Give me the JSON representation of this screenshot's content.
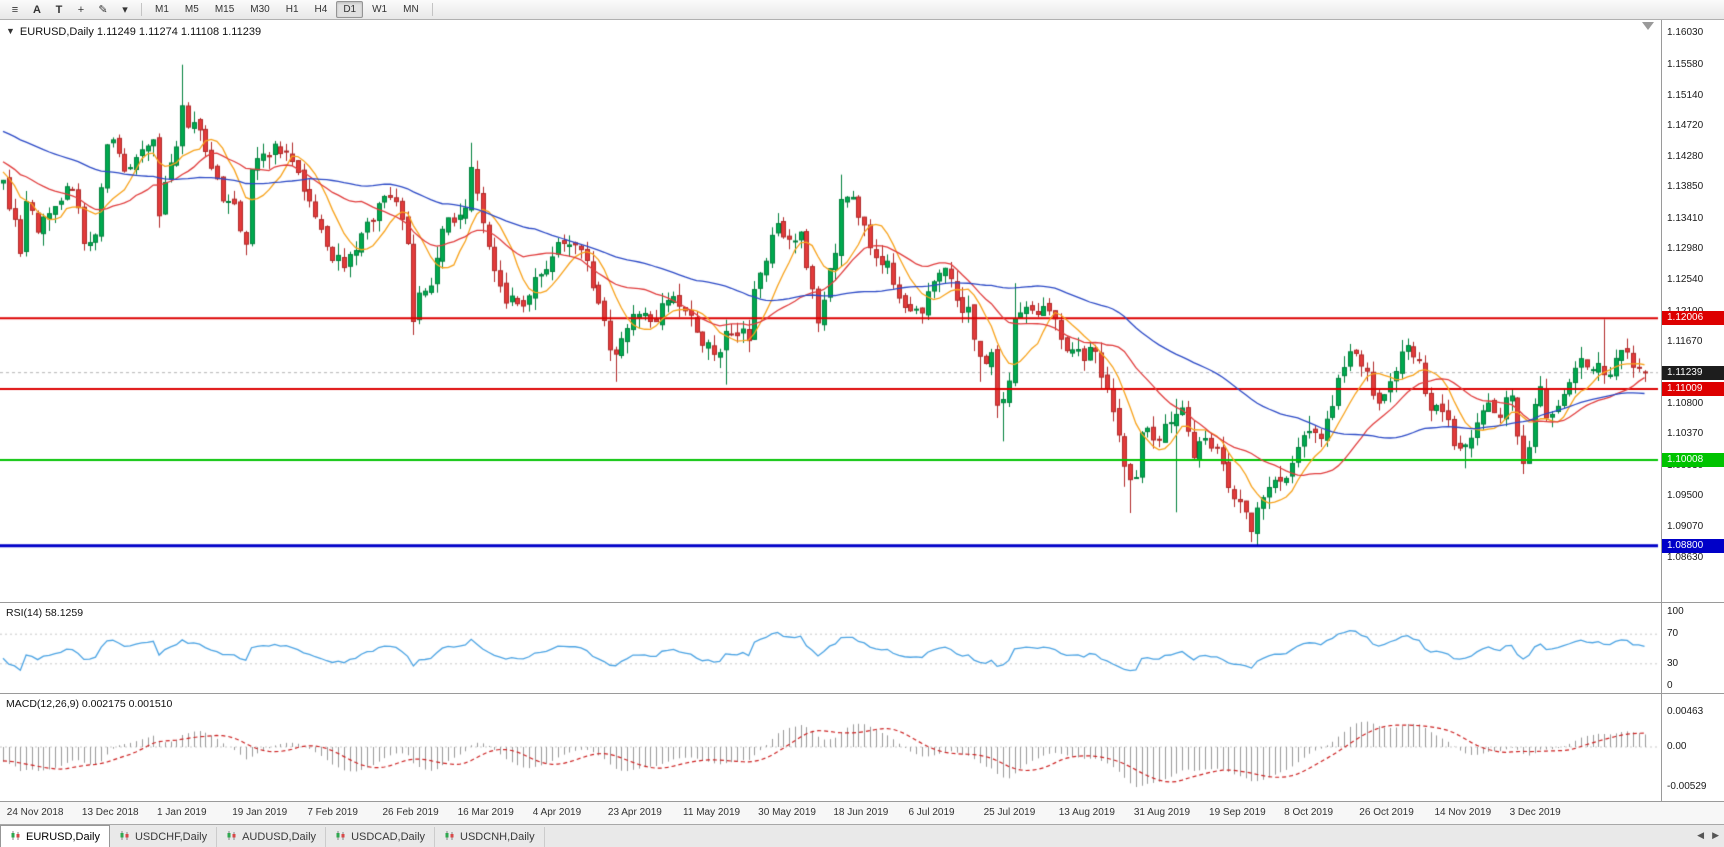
{
  "toolbar": {
    "icons": [
      {
        "name": "menu-icon",
        "glyph": "≡"
      },
      {
        "name": "cursor-icon",
        "glyph": "A"
      },
      {
        "name": "text-tool-icon",
        "glyph": "T"
      },
      {
        "name": "crosshair-icon",
        "glyph": "+"
      },
      {
        "name": "draw-tool-icon",
        "glyph": "✎"
      },
      {
        "name": "chevron-down-icon",
        "glyph": "▾"
      }
    ],
    "timeframes": [
      {
        "label": "M1"
      },
      {
        "label": "M5"
      },
      {
        "label": "M15"
      },
      {
        "label": "M30"
      },
      {
        "label": "H1"
      },
      {
        "label": "H4"
      },
      {
        "label": "D1",
        "active": true
      },
      {
        "label": "W1"
      },
      {
        "label": "MN"
      }
    ]
  },
  "chart": {
    "info_line": "EURUSD,Daily 1.11249 1.11274 1.11108 1.11239",
    "info_marker": "▼",
    "price_ticks": [
      "1.16030",
      "1.15580",
      "1.15140",
      "1.14720",
      "1.14280",
      "1.13850",
      "1.13410",
      "1.12980",
      "1.12540",
      "1.12100",
      "1.11670",
      "1.10800",
      "1.10370",
      "1.09930",
      "1.09500",
      "1.09070",
      "1.08630"
    ],
    "levels": [
      {
        "value": 1.12006,
        "label": "1.12006",
        "color": "#dd0000",
        "line_width": 2
      },
      {
        "value": 1.11009,
        "label": "1.11009",
        "color": "#dd0000",
        "line_width": 2
      },
      {
        "value": 1.10008,
        "label": "1.10008",
        "color": "#00c300",
        "line_width": 2
      },
      {
        "value": 1.088,
        "label": "1.08800",
        "color": "#0000c8",
        "line_width": 3
      }
    ],
    "current_price": {
      "value": 1.11239,
      "label": "1.11239",
      "badge_color": "#1d1d1d"
    },
    "date_labels": [
      {
        "idx": 1,
        "label": "24 Nov 2018"
      },
      {
        "idx": 14,
        "label": "13 Dec 2018"
      },
      {
        "idx": 27,
        "label": "1 Jan 2019"
      },
      {
        "idx": 40,
        "label": "19 Jan 2019"
      },
      {
        "idx": 53,
        "label": "7 Feb 2019"
      },
      {
        "idx": 66,
        "label": "26 Feb 2019"
      },
      {
        "idx": 79,
        "label": "16 Mar 2019"
      },
      {
        "idx": 92,
        "label": "4 Apr 2019"
      },
      {
        "idx": 105,
        "label": "23 Apr 2019"
      },
      {
        "idx": 118,
        "label": "11 May 2019"
      },
      {
        "idx": 131,
        "label": "30 May 2019"
      },
      {
        "idx": 144,
        "label": "18 Jun 2019"
      },
      {
        "idx": 157,
        "label": "6 Jul 2019"
      },
      {
        "idx": 170,
        "label": "25 Jul 2019"
      },
      {
        "idx": 183,
        "label": "13 Aug 2019"
      },
      {
        "idx": 196,
        "label": "31 Aug 2019"
      },
      {
        "idx": 209,
        "label": "19 Sep 2019"
      },
      {
        "idx": 222,
        "label": "8 Oct 2019"
      },
      {
        "idx": 235,
        "label": "26 Oct 2019"
      },
      {
        "idx": 248,
        "label": "14 Nov 2019"
      },
      {
        "idx": 261,
        "label": "3 Dec 2019"
      }
    ]
  },
  "rsi": {
    "label": "RSI(14) 58.1259",
    "value": 58.1259,
    "ticks": [
      {
        "v": 100,
        "label": "100"
      },
      {
        "v": 70,
        "label": "70"
      },
      {
        "v": 30,
        "label": "30"
      },
      {
        "v": 0,
        "label": "0"
      }
    ]
  },
  "macd": {
    "label": "MACD(12,26,9) 0.002175 0.001510",
    "value": 0.002175,
    "signal": 0.00151,
    "ticks": [
      {
        "v": 0.00463,
        "label": "0.00463"
      },
      {
        "v": 0,
        "label": "0.00"
      },
      {
        "v": -0.00529,
        "label": "-0.00529"
      }
    ]
  },
  "tabs": [
    {
      "label": "EURUSD,Daily",
      "active": true
    },
    {
      "label": "USDCHF,Daily"
    },
    {
      "label": "AUDUSD,Daily"
    },
    {
      "label": "USDCAD,Daily"
    },
    {
      "label": "USDCNH,Daily"
    }
  ],
  "tab_scroll": {
    "left": "◀",
    "right": "▶"
  },
  "chart_data": {
    "type": "candlestick",
    "symbol": "EURUSD",
    "timeframe": "Daily",
    "n_candles": 285,
    "price_range": {
      "top": 1.1621,
      "bottom": 1.0802
    },
    "rsi_period": 14,
    "macd_periods": [
      12,
      26,
      9
    ],
    "moving_averages": [
      {
        "period": 8,
        "color": "#f7a21b"
      },
      {
        "period": 20,
        "color": "#e03c3c"
      },
      {
        "period": 50,
        "color": "#2b49c6"
      }
    ],
    "colors": {
      "up": "#00a94f",
      "up_border": "#00813d",
      "down": "#e23b3b",
      "down_border": "#b02a2a",
      "rsi_line": "#4ba3e3",
      "macd_hist": "#9a9a9a",
      "macd_signal": "#cc2222",
      "grid": "#c8c8c8",
      "current_price_line": "#b4b4b4"
    },
    "warmup": {
      "bars": 60,
      "start": 1.156,
      "end": 1.1395
    },
    "last_candle": {
      "o": 1.11249,
      "h": 1.11274,
      "l": 1.11108,
      "c": 1.11239
    },
    "anchors": [
      [
        0,
        1.1395
      ],
      [
        2,
        1.134
      ],
      [
        3,
        1.1292
      ],
      [
        4,
        1.1365
      ],
      [
        6,
        1.1322
      ],
      [
        9,
        1.1358
      ],
      [
        12,
        1.1382
      ],
      [
        14,
        1.1306
      ],
      [
        16,
        1.1318
      ],
      [
        18,
        1.1445
      ],
      [
        19,
        1.1452
      ],
      [
        21,
        1.1408
      ],
      [
        24,
        1.1438
      ],
      [
        26,
        1.1452
      ],
      [
        27,
        1.1345
      ],
      [
        28,
        1.1392
      ],
      [
        30,
        1.1442
      ],
      [
        31,
        1.15,
        1.1558,
        null
      ],
      [
        32,
        1.147
      ],
      [
        34,
        1.1466
      ],
      [
        36,
        1.1412
      ],
      [
        38,
        1.1366
      ],
      [
        40,
        1.1362
      ],
      [
        42,
        1.1305
      ],
      [
        43,
        1.141
      ],
      [
        45,
        1.1432
      ],
      [
        47,
        1.1446
      ],
      [
        49,
        1.1436
      ],
      [
        51,
        1.1406
      ],
      [
        53,
        1.1366
      ],
      [
        55,
        1.1326
      ],
      [
        57,
        1.1282
      ],
      [
        59,
        1.1272
      ],
      [
        61,
        1.1296
      ],
      [
        63,
        1.1336
      ],
      [
        65,
        1.1362
      ],
      [
        67,
        1.1371
      ],
      [
        69,
        1.134
      ],
      [
        70,
        1.1306
      ],
      [
        71,
        1.1196,
        null,
        1.1177
      ],
      [
        72,
        1.1236
      ],
      [
        74,
        1.1246
      ],
      [
        76,
        1.1326
      ],
      [
        78,
        1.1336
      ],
      [
        80,
        1.1356
      ],
      [
        81,
        1.1413,
        1.1448,
        null
      ],
      [
        82,
        1.1377
      ],
      [
        84,
        1.1302
      ],
      [
        86,
        1.1246
      ],
      [
        87,
        1.1222,
        null,
        1.1214
      ],
      [
        89,
        1.1221
      ],
      [
        91,
        1.1232
      ],
      [
        93,
        1.1262
      ],
      [
        95,
        1.1287
      ],
      [
        97,
        1.1306
      ],
      [
        99,
        1.1304
      ],
      [
        101,
        1.1282
      ],
      [
        103,
        1.1222
      ],
      [
        105,
        1.1156
      ],
      [
        106,
        1.115,
        null,
        1.1111
      ],
      [
        108,
        1.1186
      ],
      [
        110,
        1.1206
      ],
      [
        112,
        1.1196
      ],
      [
        114,
        1.1221
      ],
      [
        116,
        1.1231
      ],
      [
        118,
        1.1211
      ],
      [
        120,
        1.1181
      ],
      [
        122,
        1.1166
      ],
      [
        124,
        1.1152
      ],
      [
        125,
        1.1182,
        null,
        1.1107
      ],
      [
        127,
        1.1176
      ],
      [
        129,
        1.1169
      ],
      [
        130,
        1.1241
      ],
      [
        132,
        1.1281
      ],
      [
        134,
        1.1334
      ],
      [
        136,
        1.1312
      ],
      [
        138,
        1.1322
      ],
      [
        140,
        1.1242
      ],
      [
        141,
        1.1194,
        null,
        1.1181
      ],
      [
        142,
        1.1226
      ],
      [
        144,
        1.1292
      ],
      [
        145,
        1.1368,
        1.1403,
        null
      ],
      [
        147,
        1.1371
      ],
      [
        149,
        1.1332
      ],
      [
        151,
        1.1286
      ],
      [
        153,
        1.1281
      ],
      [
        155,
        1.1229
      ],
      [
        157,
        1.1211
      ],
      [
        159,
        1.1208,
        null,
        1.1193
      ],
      [
        161,
        1.1252
      ],
      [
        163,
        1.1271
      ],
      [
        165,
        1.1226
      ],
      [
        167,
        1.1216
      ],
      [
        169,
        1.1147,
        null,
        1.1111
      ],
      [
        171,
        1.1152
      ],
      [
        172,
        1.1078,
        null,
        1.106
      ],
      [
        173,
        1.1086,
        null,
        1.1027
      ],
      [
        174,
        1.1112
      ],
      [
        175,
        1.12,
        1.125,
        null
      ],
      [
        177,
        1.1216
      ],
      [
        179,
        1.1206
      ],
      [
        181,
        1.1211
      ],
      [
        183,
        1.1171
      ],
      [
        185,
        1.1156
      ],
      [
        187,
        1.1141
      ],
      [
        189,
        1.1154
      ],
      [
        191,
        1.1101
      ],
      [
        193,
        1.1036
      ],
      [
        194,
        1.0992,
        null,
        1.0963
      ],
      [
        195,
        1.0973,
        null,
        1.0926
      ],
      [
        196,
        1.0976
      ],
      [
        197,
        1.1039
      ],
      [
        199,
        1.1029
      ],
      [
        201,
        1.1051
      ],
      [
        203,
        1.1065,
        1.1087,
        1.0927
      ],
      [
        204,
        1.1074
      ],
      [
        206,
        1.1004
      ],
      [
        208,
        1.1031
      ],
      [
        210,
        1.1018
      ],
      [
        212,
        1.0962
      ],
      [
        214,
        1.0942
      ],
      [
        216,
        1.09,
        null,
        1.0885
      ],
      [
        217,
        1.0933,
        null,
        1.0879
      ],
      [
        219,
        1.0962
      ],
      [
        221,
        1.0971
      ],
      [
        223,
        1.0996
      ],
      [
        225,
        1.1035
      ],
      [
        226,
        1.1041,
        1.1063,
        null
      ],
      [
        228,
        1.1031
      ],
      [
        230,
        1.1076
      ],
      [
        232,
        1.1131
      ],
      [
        234,
        1.1151
      ],
      [
        236,
        1.1126
      ],
      [
        238,
        1.1081
      ],
      [
        240,
        1.1111
      ],
      [
        242,
        1.1153
      ],
      [
        243,
        1.1162,
        1.1172,
        null
      ],
      [
        245,
        1.1141
      ],
      [
        247,
        1.1071
      ],
      [
        249,
        1.1069
      ],
      [
        251,
        1.1021
      ],
      [
        253,
        1.1022,
        null,
        1.0989
      ],
      [
        255,
        1.1053
      ],
      [
        257,
        1.1081
      ],
      [
        259,
        1.1061
      ],
      [
        261,
        1.1091
      ],
      [
        263,
        1.0996,
        null,
        1.0981
      ],
      [
        264,
        1.1018
      ],
      [
        265,
        1.1079
      ],
      [
        266,
        1.1104
      ],
      [
        267,
        1.106
      ],
      [
        268,
        1.1065
      ],
      [
        270,
        1.1093
      ],
      [
        272,
        1.113
      ],
      [
        274,
        1.1132
      ],
      [
        277,
        1.1121,
        1.1199,
        null
      ],
      [
        279,
        1.1144
      ],
      [
        281,
        1.1153
      ],
      [
        283,
        1.1131
      ],
      [
        284,
        1.11239,
        1.11274,
        1.11108
      ]
    ]
  }
}
